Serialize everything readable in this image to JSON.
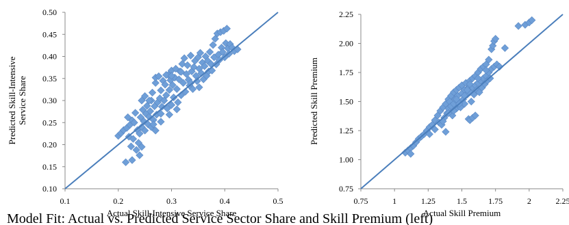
{
  "caption": "Model Fit: Actual vs. Predicted Service Sector Share and Skill Premium (left)",
  "chart_data": [
    {
      "type": "scatter",
      "xlabel": "Actual Skill-Intensive Service Share",
      "ylabel_lines": [
        "Predicted Skill-Intensive",
        "Service Share"
      ],
      "xlim": [
        0.1,
        0.5
      ],
      "ylim": [
        0.1,
        0.5
      ],
      "x_ticks": [
        0.1,
        0.2,
        0.3,
        0.4,
        0.5
      ],
      "x_tick_labels": [
        "0.1",
        "0.2",
        "0.3",
        "0.4",
        "0.5"
      ],
      "y_ticks": [
        0.1,
        0.15,
        0.2,
        0.25,
        0.3,
        0.35,
        0.4,
        0.45,
        0.5
      ],
      "y_tick_labels": [
        "0.10",
        "0.15",
        "0.20",
        "0.25",
        "0.30",
        "0.35",
        "0.40",
        "0.45",
        "0.50"
      ],
      "grid": false,
      "reference_line": "45-degree",
      "marker": "diamond",
      "marker_color": "#6F9FD8",
      "line_color": "#4A7EBB",
      "points": [
        [
          0.2,
          0.22
        ],
        [
          0.205,
          0.226
        ],
        [
          0.21,
          0.233
        ],
        [
          0.214,
          0.16
        ],
        [
          0.216,
          0.238
        ],
        [
          0.218,
          0.262
        ],
        [
          0.22,
          0.218
        ],
        [
          0.222,
          0.245
        ],
        [
          0.224,
          0.196
        ],
        [
          0.226,
          0.255
        ],
        [
          0.226,
          0.165
        ],
        [
          0.228,
          0.213
        ],
        [
          0.23,
          0.25
        ],
        [
          0.232,
          0.272
        ],
        [
          0.234,
          0.188
        ],
        [
          0.236,
          0.233
        ],
        [
          0.238,
          0.204
        ],
        [
          0.24,
          0.225
        ],
        [
          0.24,
          0.176
        ],
        [
          0.242,
          0.262
        ],
        [
          0.244,
          0.24
        ],
        [
          0.244,
          0.195
        ],
        [
          0.246,
          0.279
        ],
        [
          0.248,
          0.253
        ],
        [
          0.25,
          0.232
        ],
        [
          0.252,
          0.27
        ],
        [
          0.254,
          0.288
        ],
        [
          0.256,
          0.246
        ],
        [
          0.258,
          0.263
        ],
        [
          0.26,
          0.276
        ],
        [
          0.262,
          0.3
        ],
        [
          0.262,
          0.24
        ],
        [
          0.264,
          0.318
        ],
        [
          0.266,
          0.256
        ],
        [
          0.268,
          0.287
        ],
        [
          0.27,
          0.34
        ],
        [
          0.27,
          0.352
        ],
        [
          0.272,
          0.268
        ],
        [
          0.274,
          0.296
        ],
        [
          0.276,
          0.355
        ],
        [
          0.278,
          0.305
        ],
        [
          0.28,
          0.27
        ],
        [
          0.28,
          0.323
        ],
        [
          0.282,
          0.286
        ],
        [
          0.284,
          0.345
        ],
        [
          0.286,
          0.3
        ],
        [
          0.288,
          0.336
        ],
        [
          0.29,
          0.312
        ],
        [
          0.292,
          0.282
        ],
        [
          0.294,
          0.358
        ],
        [
          0.296,
          0.324
        ],
        [
          0.298,
          0.346
        ],
        [
          0.3,
          0.29
        ],
        [
          0.3,
          0.368
        ],
        [
          0.302,
          0.335
        ],
        [
          0.304,
          0.307
        ],
        [
          0.306,
          0.352
        ],
        [
          0.308,
          0.372
        ],
        [
          0.31,
          0.326
        ],
        [
          0.312,
          0.296
        ],
        [
          0.314,
          0.348
        ],
        [
          0.316,
          0.366
        ],
        [
          0.318,
          0.312
        ],
        [
          0.32,
          0.383
        ],
        [
          0.322,
          0.34
        ],
        [
          0.324,
          0.396
        ],
        [
          0.326,
          0.32
        ],
        [
          0.328,
          0.36
        ],
        [
          0.33,
          0.38
        ],
        [
          0.332,
          0.347
        ],
        [
          0.334,
          0.334
        ],
        [
          0.336,
          0.402
        ],
        [
          0.338,
          0.366
        ],
        [
          0.34,
          0.326
        ],
        [
          0.342,
          0.376
        ],
        [
          0.344,
          0.39
        ],
        [
          0.346,
          0.356
        ],
        [
          0.348,
          0.344
        ],
        [
          0.35,
          0.398
        ],
        [
          0.352,
          0.372
        ],
        [
          0.354,
          0.408
        ],
        [
          0.356,
          0.362
        ],
        [
          0.358,
          0.386
        ],
        [
          0.36,
          0.348
        ],
        [
          0.362,
          0.378
        ],
        [
          0.364,
          0.4
        ],
        [
          0.366,
          0.356
        ],
        [
          0.368,
          0.39
        ],
        [
          0.37,
          0.366
        ],
        [
          0.372,
          0.41
        ],
        [
          0.374,
          0.383
        ],
        [
          0.376,
          0.368
        ],
        [
          0.378,
          0.426
        ],
        [
          0.38,
          0.398
        ],
        [
          0.382,
          0.44
        ],
        [
          0.384,
          0.382
        ],
        [
          0.386,
          0.452
        ],
        [
          0.388,
          0.404
        ],
        [
          0.39,
          0.392
        ],
        [
          0.392,
          0.455
        ],
        [
          0.394,
          0.42
        ],
        [
          0.396,
          0.41
        ],
        [
          0.398,
          0.458
        ],
        [
          0.4,
          0.398
        ],
        [
          0.402,
          0.43
        ],
        [
          0.404,
          0.463
        ],
        [
          0.406,
          0.418
        ],
        [
          0.408,
          0.406
        ],
        [
          0.41,
          0.428
        ],
        [
          0.414,
          0.42
        ],
        [
          0.418,
          0.412
        ],
        [
          0.424,
          0.416
        ],
        [
          0.27,
          0.232
        ],
        [
          0.29,
          0.358
        ],
        [
          0.3,
          0.356
        ],
        [
          0.318,
          0.365
        ],
        [
          0.336,
          0.34
        ],
        [
          0.352,
          0.33
        ],
        [
          0.244,
          0.3
        ],
        [
          0.258,
          0.3
        ],
        [
          0.25,
          0.31
        ],
        [
          0.28,
          0.252
        ],
        [
          0.296,
          0.268
        ],
        [
          0.31,
          0.28
        ],
        [
          0.266,
          0.246
        ]
      ]
    },
    {
      "type": "scatter",
      "xlabel": "Actual Skill Premium",
      "ylabel": "Predicted Skill Premium",
      "xlim": [
        0.75,
        2.25
      ],
      "ylim": [
        0.75,
        2.25
      ],
      "x_ticks": [
        0.75,
        1.0,
        1.25,
        1.5,
        1.75,
        2.0,
        2.25
      ],
      "x_tick_labels": [
        "0.75",
        "1",
        "1.25",
        "1.5",
        "1.75",
        "2",
        "2.25"
      ],
      "y_ticks": [
        0.75,
        1.0,
        1.25,
        1.5,
        1.75,
        2.0,
        2.25
      ],
      "y_tick_labels": [
        "0.75",
        "1.00",
        "1.25",
        "1.50",
        "1.75",
        "2.00",
        "2.25"
      ],
      "grid": false,
      "reference_line": "45-degree",
      "marker": "diamond",
      "marker_color": "#6F9FD8",
      "line_color": "#4A7EBB",
      "points": [
        [
          1.08,
          1.06
        ],
        [
          1.1,
          1.08
        ],
        [
          1.12,
          1.1
        ],
        [
          1.12,
          1.05
        ],
        [
          1.14,
          1.12
        ],
        [
          1.16,
          1.15
        ],
        [
          1.18,
          1.18
        ],
        [
          1.2,
          1.2
        ],
        [
          1.22,
          1.22
        ],
        [
          1.24,
          1.25
        ],
        [
          1.26,
          1.28
        ],
        [
          1.26,
          1.22
        ],
        [
          1.28,
          1.3
        ],
        [
          1.3,
          1.34
        ],
        [
          1.3,
          1.26
        ],
        [
          1.32,
          1.38
        ],
        [
          1.33,
          1.32
        ],
        [
          1.34,
          1.42
        ],
        [
          1.35,
          1.3
        ],
        [
          1.36,
          1.45
        ],
        [
          1.37,
          1.36
        ],
        [
          1.38,
          1.48
        ],
        [
          1.38,
          1.24
        ],
        [
          1.39,
          1.4
        ],
        [
          1.4,
          1.52
        ],
        [
          1.4,
          1.44
        ],
        [
          1.41,
          1.5
        ],
        [
          1.42,
          1.55
        ],
        [
          1.42,
          1.46
        ],
        [
          1.43,
          1.38
        ],
        [
          1.44,
          1.58
        ],
        [
          1.44,
          1.48
        ],
        [
          1.45,
          1.52
        ],
        [
          1.46,
          1.6
        ],
        [
          1.46,
          1.44
        ],
        [
          1.47,
          1.55
        ],
        [
          1.48,
          1.62
        ],
        [
          1.48,
          1.5
        ],
        [
          1.49,
          1.45
        ],
        [
          1.5,
          1.57
        ],
        [
          1.5,
          1.64
        ],
        [
          1.51,
          1.52
        ],
        [
          1.52,
          1.6
        ],
        [
          1.52,
          1.48
        ],
        [
          1.53,
          1.66
        ],
        [
          1.54,
          1.56
        ],
        [
          1.55,
          1.62
        ],
        [
          1.55,
          1.35
        ],
        [
          1.56,
          1.68
        ],
        [
          1.56,
          1.58
        ],
        [
          1.57,
          1.5
        ],
        [
          1.58,
          1.7
        ],
        [
          1.58,
          1.62
        ],
        [
          1.59,
          1.56
        ],
        [
          1.6,
          1.72
        ],
        [
          1.6,
          1.64
        ],
        [
          1.61,
          1.6
        ],
        [
          1.62,
          1.75
        ],
        [
          1.62,
          1.66
        ],
        [
          1.63,
          1.58
        ],
        [
          1.64,
          1.78
        ],
        [
          1.64,
          1.68
        ],
        [
          1.65,
          1.62
        ],
        [
          1.66,
          1.8
        ],
        [
          1.66,
          1.7
        ],
        [
          1.67,
          1.65
        ],
        [
          1.68,
          1.82
        ],
        [
          1.68,
          1.72
        ],
        [
          1.69,
          1.68
        ],
        [
          1.7,
          1.86
        ],
        [
          1.7,
          1.75
        ],
        [
          1.71,
          1.7
        ],
        [
          1.72,
          1.95
        ],
        [
          1.72,
          1.78
        ],
        [
          1.73,
          1.98
        ],
        [
          1.74,
          2.02
        ],
        [
          1.74,
          1.8
        ],
        [
          1.75,
          2.04
        ],
        [
          1.76,
          1.82
        ],
        [
          1.78,
          1.8
        ],
        [
          1.82,
          1.96
        ],
        [
          1.92,
          2.15
        ],
        [
          1.97,
          2.16
        ],
        [
          2.0,
          2.18
        ],
        [
          2.02,
          2.2
        ],
        [
          1.56,
          1.34
        ],
        [
          1.58,
          1.36
        ],
        [
          1.6,
          1.38
        ],
        [
          1.48,
          1.48
        ],
        [
          1.44,
          1.42
        ],
        [
          1.36,
          1.33
        ],
        [
          1.46,
          1.52
        ],
        [
          1.52,
          1.55
        ],
        [
          1.4,
          1.4
        ],
        [
          1.68,
          1.77
        ],
        [
          1.62,
          1.7
        ],
        [
          1.54,
          1.6
        ],
        [
          1.56,
          1.65
        ]
      ]
    }
  ]
}
